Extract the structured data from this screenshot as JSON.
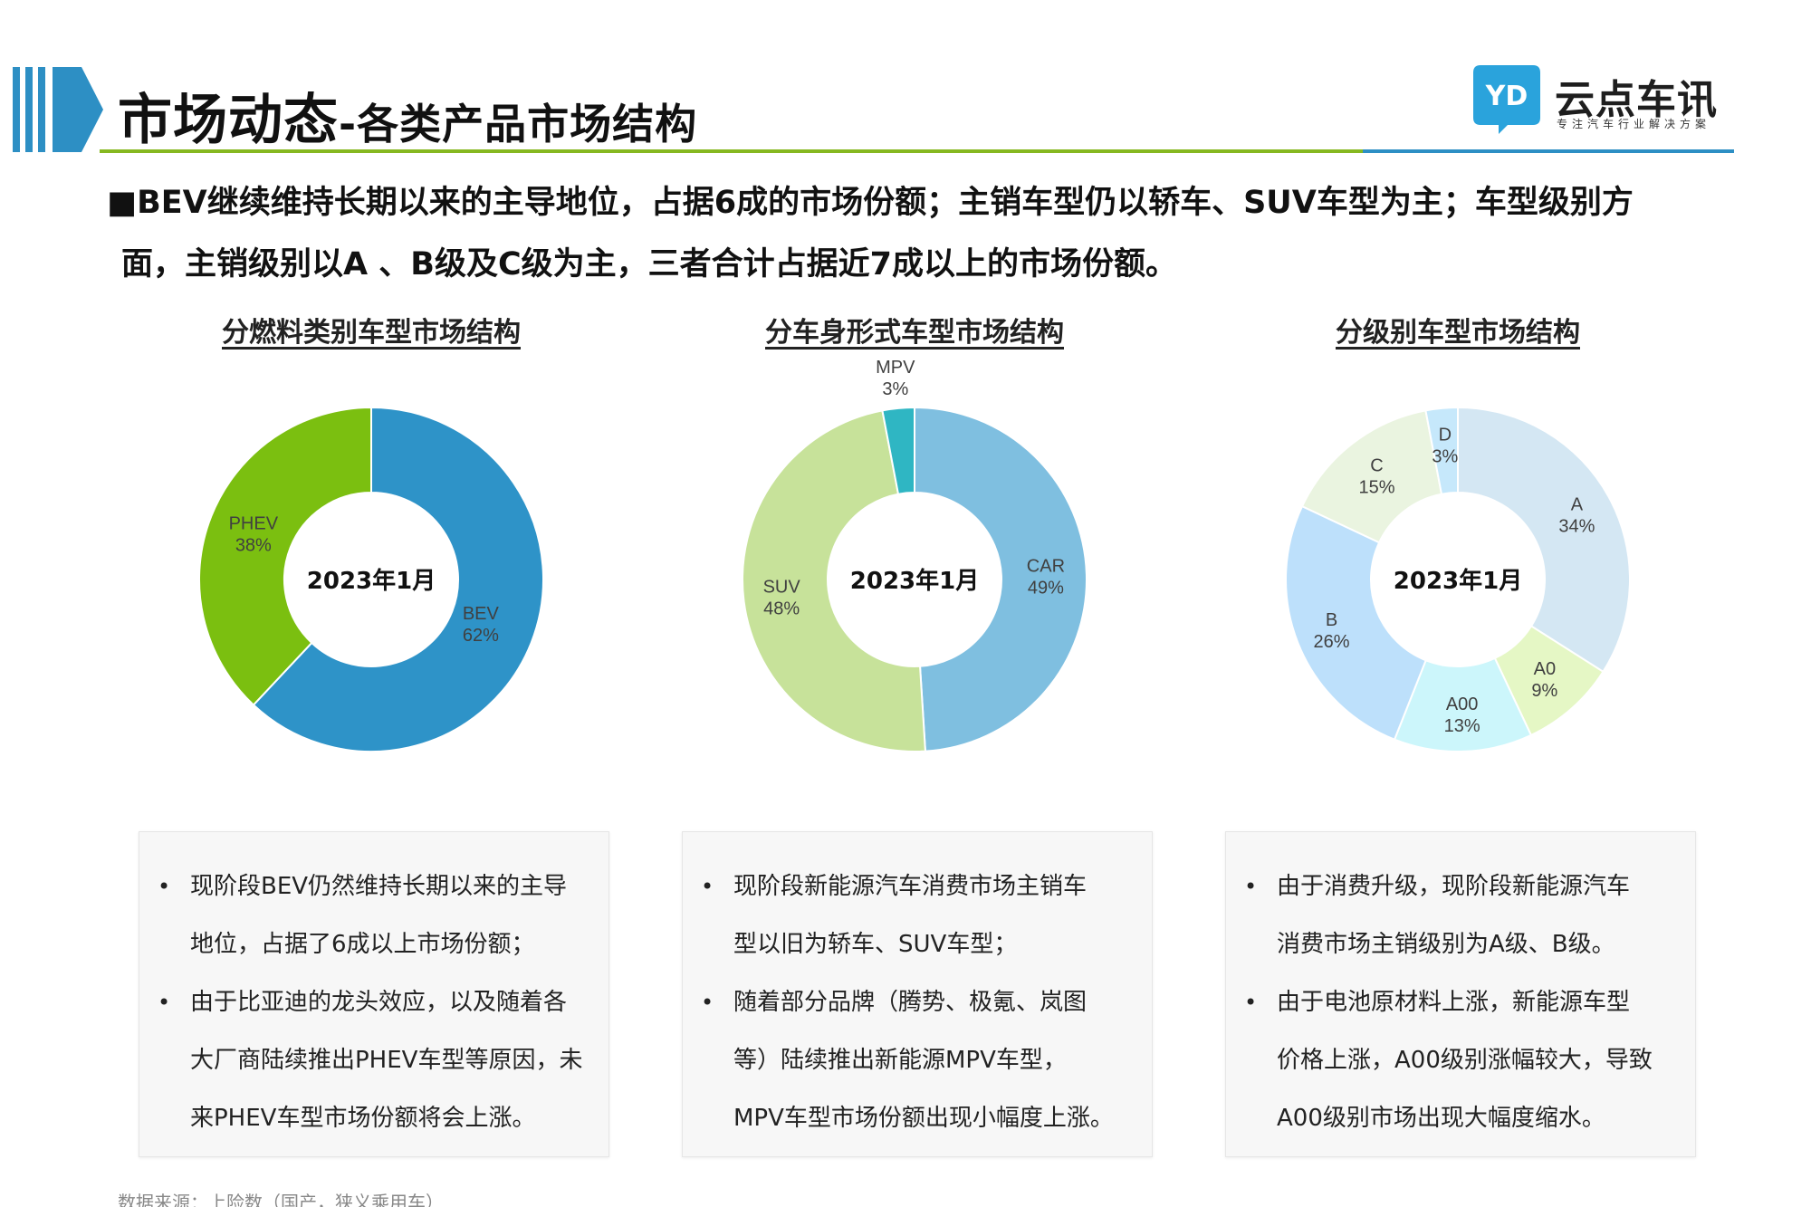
{
  "header": {
    "title_main": "市场动态",
    "title_sub": "-各类产品市场结构",
    "logo_name": "云点车讯",
    "logo_slogan": "专注汽车行业解决方案",
    "logo_mark_text": "YD"
  },
  "summary": {
    "line1": "■BEV继续维持长期以来的主导地位，占据6成的市场份额；主销车型仍以轿车、SUV车型为主；车型级别方",
    "line2": "面，主销级别以A 、B级及C级为主，三者合计占据近7成以上的市场份额。"
  },
  "chart_data": [
    {
      "type": "pie",
      "title": "分燃料类别车型市场结构",
      "center_label": "2023年1月",
      "slices": [
        {
          "label": "BEV",
          "value": 62,
          "display": "62%",
          "color": "#2e93c8"
        },
        {
          "label": "PHEV",
          "value": 38,
          "display": "38%",
          "color": "#7bbf10"
        }
      ]
    },
    {
      "type": "pie",
      "title": "分车身形式车型市场结构",
      "center_label": "2023年1月",
      "slices": [
        {
          "label": "CAR",
          "value": 49,
          "display": "49%",
          "color": "#7fbfe0"
        },
        {
          "label": "SUV",
          "value": 48,
          "display": "48%",
          "color": "#c7e29a"
        },
        {
          "label": "MPV",
          "value": 3,
          "display": "3%",
          "color": "#2fb6c3"
        }
      ]
    },
    {
      "type": "pie",
      "title": "分级别车型市场结构",
      "center_label": "2023年1月",
      "slices": [
        {
          "label": "A",
          "value": 34,
          "display": "34%",
          "color": "#d4e7f3"
        },
        {
          "label": "A0",
          "value": 9,
          "display": "9%",
          "color": "#e5f7c5"
        },
        {
          "label": "A00",
          "value": 13,
          "display": "13%",
          "color": "#ccf6fb"
        },
        {
          "label": "B",
          "value": 26,
          "display": "26%",
          "color": "#bde0fb"
        },
        {
          "label": "C",
          "value": 15,
          "display": "15%",
          "color": "#eaf4e0"
        },
        {
          "label": "D",
          "value": 3,
          "display": "3%",
          "color": "#c6e8fb"
        }
      ]
    }
  ],
  "notes": [
    {
      "items": [
        {
          "lines": [
            "现阶段BEV仍然维持长期以来的主导",
            "地位，占据了6成以上市场份额；"
          ]
        },
        {
          "lines": [
            "由于比亚迪的龙头效应，以及随着各",
            "大厂商陆续推出PHEV车型等原因，未",
            "来PHEV车型市场份额将会上涨。"
          ]
        }
      ]
    },
    {
      "items": [
        {
          "lines": [
            "现阶段新能源汽车消费市场主销车",
            "型以旧为轿车、SUV车型；"
          ]
        },
        {
          "lines": [
            "随着部分品牌（腾势、极氪、岚图",
            "等）陆续推出新能源MPV车型，",
            "MPV车型市场份额出现小幅度上涨。"
          ]
        }
      ]
    },
    {
      "items": [
        {
          "lines": [
            "由于消费升级，现阶段新能源汽车",
            "消费市场主销级别为A级、B级。"
          ]
        },
        {
          "lines": [
            "由于电池原材料上涨，新能源车型",
            "价格上涨，A00级别涨幅较大，导致",
            "A00级别市场出现大幅度缩水。"
          ]
        }
      ]
    }
  ],
  "source": "数据来源：上险数（国产，狭义乘用车）",
  "colors": {
    "accent_blue": "#2d8fc4",
    "accent_green": "#86b820"
  }
}
